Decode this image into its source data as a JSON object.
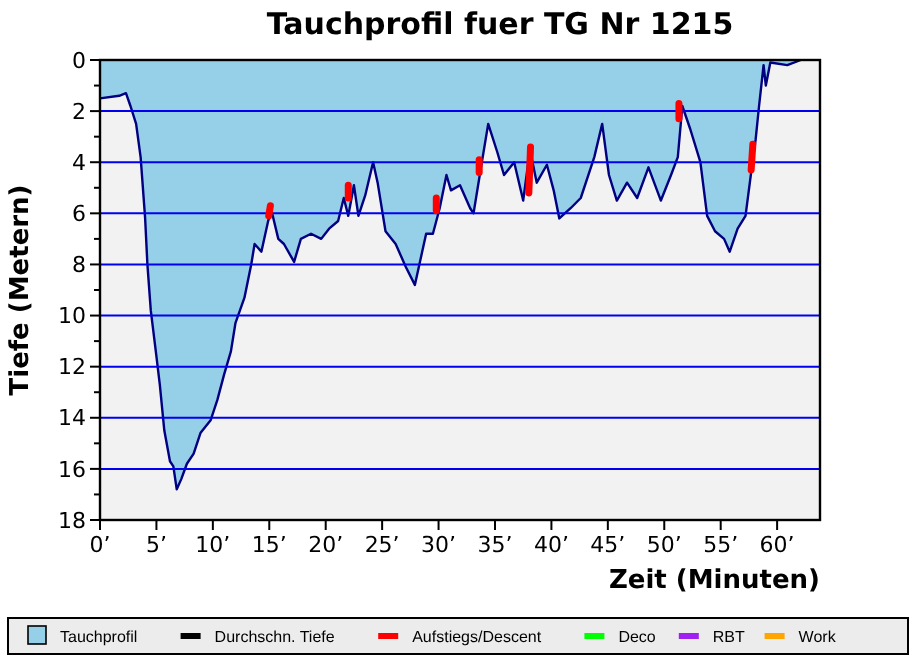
{
  "chart_data": {
    "type": "area",
    "title": "Tauchprofil fuer TG Nr 1215",
    "xlabel": "Zeit (Minuten)",
    "ylabel": "Tiefe (Metern)",
    "xlim": [
      0,
      63.8
    ],
    "ylim": [
      18,
      0
    ],
    "xticks": [
      {
        "value": 0,
        "label": "0’"
      },
      {
        "value": 5,
        "label": "5’"
      },
      {
        "value": 10,
        "label": "10’"
      },
      {
        "value": 15,
        "label": "15’"
      },
      {
        "value": 20,
        "label": "20’"
      },
      {
        "value": 25,
        "label": "25’"
      },
      {
        "value": 30,
        "label": "30’"
      },
      {
        "value": 35,
        "label": "35’"
      },
      {
        "value": 40,
        "label": "40’"
      },
      {
        "value": 45,
        "label": "45’"
      },
      {
        "value": 50,
        "label": "50’"
      },
      {
        "value": 55,
        "label": "55’"
      },
      {
        "value": 60,
        "label": "60’"
      }
    ],
    "yticks": [
      0,
      {
        "value": 1,
        "label": null
      },
      2,
      {
        "value": 3,
        "label": null
      },
      4,
      {
        "value": 5,
        "label": null
      },
      6,
      {
        "value": 7,
        "label": null
      },
      8,
      {
        "value": 9,
        "label": null
      },
      10,
      {
        "value": 11,
        "label": null
      },
      12,
      {
        "value": 13,
        "label": null
      },
      14,
      {
        "value": 15,
        "label": null
      },
      16,
      {
        "value": 17,
        "label": null
      },
      18
    ],
    "grid": "y",
    "legend": "bottom",
    "series": [
      {
        "name": "Tauchprofil",
        "color": "#96cfe8",
        "x": [
          0,
          1.7,
          2.3,
          2.7,
          3.2,
          3.6,
          4,
          4.2,
          4.5,
          5,
          5.3,
          5.7,
          6.2,
          6.5,
          6.8,
          7.2,
          7.7,
          8.3,
          8.9,
          9.8,
          10.4,
          11,
          11.6,
          12,
          12.8,
          13.4,
          13.7,
          14.3,
          14.9,
          15.2,
          15.8,
          16.3,
          17.2,
          17.8,
          18.7,
          19.6,
          20.3,
          21.1,
          21.6,
          22,
          22.5,
          22.9,
          23.5,
          24.2,
          24.6,
          25.3,
          26.2,
          27.1,
          27.9,
          28.3,
          28.9,
          29.5,
          30.1,
          30.7,
          31.1,
          31.9,
          32.8,
          33.1,
          33.8,
          34.4,
          35.2,
          35.8,
          36.7,
          37.5,
          38.1,
          38.7,
          39.6,
          40.2,
          40.7,
          41.7,
          42.6,
          43.8,
          44.5,
          45.1,
          45.8,
          46.7,
          47.6,
          48.6,
          49.7,
          50.6,
          51.2,
          51.6,
          52.3,
          53.2,
          53.8,
          54.5,
          55.3,
          55.8,
          56.5,
          57.2,
          57.7,
          58.1,
          58.4,
          58.8,
          59,
          59.4,
          60.9,
          62.1
        ],
        "values": [
          1.5,
          1.4,
          1.3,
          1.8,
          2.5,
          3.8,
          6.2,
          8,
          9.8,
          11.6,
          12.7,
          14.5,
          15.7,
          15.9,
          16.8,
          16.4,
          15.8,
          15.4,
          14.6,
          14.1,
          13.3,
          12.3,
          11.4,
          10.3,
          9.3,
          8,
          7.2,
          7.5,
          6.3,
          5.9,
          7,
          7.2,
          7.9,
          7,
          6.8,
          7,
          6.6,
          6.3,
          5.4,
          6.1,
          4.9,
          6.1,
          5.3,
          4,
          4.8,
          6.7,
          7.2,
          8.1,
          8.8,
          8,
          6.8,
          6.8,
          5.8,
          4.5,
          5.1,
          4.9,
          5.8,
          6,
          4.1,
          2.5,
          3.6,
          4.5,
          4,
          5.5,
          3.5,
          4.8,
          4.1,
          5.1,
          6.2,
          5.8,
          5.4,
          3.8,
          2.5,
          4.5,
          5.5,
          4.8,
          5.4,
          4.2,
          5.5,
          4.5,
          3.8,
          1.8,
          2.7,
          4,
          6.1,
          6.7,
          7,
          7.5,
          6.6,
          6.1,
          4.4,
          3.1,
          1.8,
          0.2,
          1,
          0.1,
          0.2,
          0
        ]
      },
      {
        "name": "Durchschn. Tiefe",
        "type": "line",
        "color": "#000000"
      },
      {
        "name": "Aufstiegs/Descent",
        "type": "line",
        "color": "#ff0000",
        "x": [
          14.95,
          15.1
        ],
        "values": [
          6.1,
          5.7
        ]
      },
      {
        "type": "line",
        "color": "#ff0000",
        "x": [
          22,
          22
        ],
        "values": [
          5.4,
          4.9
        ]
      },
      {
        "type": "line",
        "color": "#ff0000",
        "x": [
          29.8,
          29.8
        ],
        "values": [
          5.9,
          5.4
        ]
      },
      {
        "type": "line",
        "color": "#ff0000",
        "x": [
          33.6,
          33.6
        ],
        "values": [
          4.4,
          3.9
        ]
      },
      {
        "type": "line",
        "color": "#ff0000",
        "x": [
          38,
          38.15
        ],
        "values": [
          5.2,
          3.4
        ]
      },
      {
        "type": "line",
        "color": "#ff0000",
        "x": [
          51.3,
          51.3
        ],
        "values": [
          2.3,
          1.7
        ]
      },
      {
        "type": "line",
        "color": "#ff0000",
        "x": [
          57.7,
          57.85
        ],
        "values": [
          4.3,
          3.3
        ]
      },
      {
        "name": "Deco",
        "type": "line",
        "color": "#00ff00"
      },
      {
        "name": "RBT",
        "type": "line",
        "color": "#a020f0"
      },
      {
        "name": "Work",
        "type": "line",
        "color": "#ffa500"
      }
    ]
  }
}
